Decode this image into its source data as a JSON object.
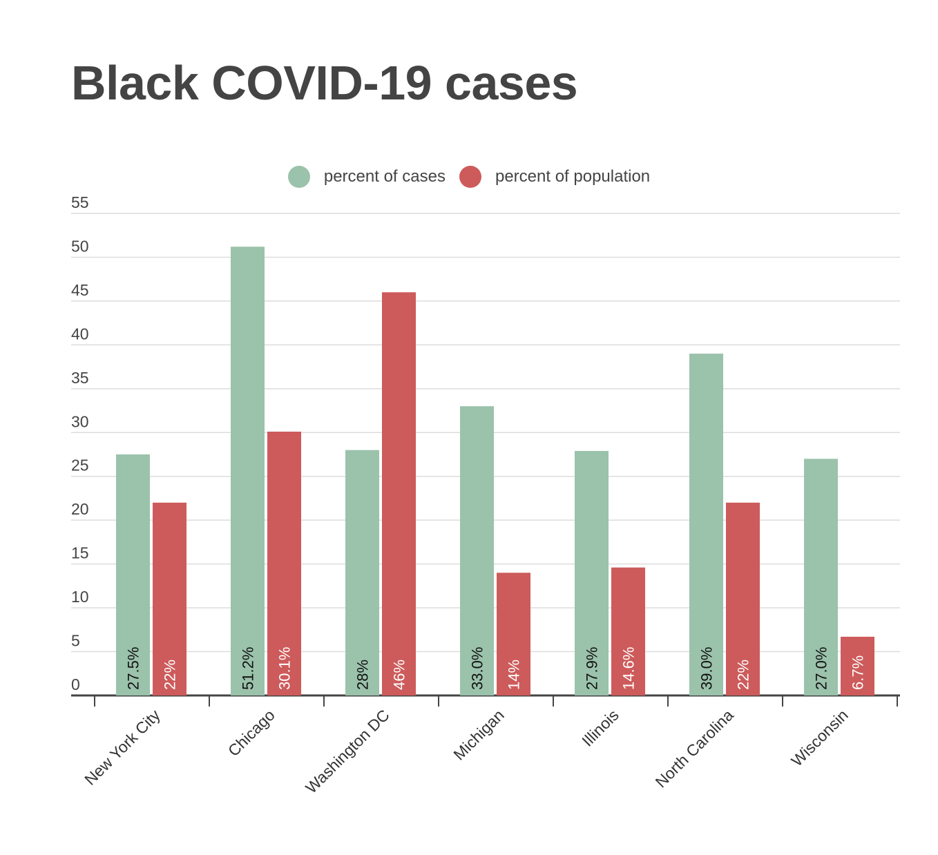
{
  "chart_data": {
    "type": "bar",
    "title": "Black COVID-19 cases",
    "categories": [
      "New York City",
      "Chicago",
      "Washington DC",
      "Michigan",
      "Illinois",
      "North Carolina",
      "Wisconsin"
    ],
    "series": [
      {
        "name": "percent of cases",
        "color": "#9bc2ab",
        "label_color": "#111111",
        "values": [
          27.5,
          51.2,
          28,
          33.0,
          27.9,
          39.0,
          27.0
        ],
        "labels": [
          "27.5%",
          "51.2%",
          "28%",
          "33.0%",
          "27.9%",
          "39.0%",
          "27.0%"
        ]
      },
      {
        "name": "percent of population",
        "color": "#cd5b5b",
        "label_color": "#ffffff",
        "values": [
          22,
          30.1,
          46,
          14,
          14.6,
          22,
          6.7
        ],
        "labels": [
          "22%",
          "30.1%",
          "46%",
          "14%",
          "14.6%",
          "22%",
          "6.7%"
        ]
      }
    ],
    "yticks": [
      "0",
      "5",
      "10",
      "15",
      "20",
      "25",
      "30",
      "35",
      "40",
      "45",
      "50",
      "55"
    ],
    "ylim": [
      0,
      55
    ],
    "grid": true,
    "legend_position": "top-center"
  }
}
